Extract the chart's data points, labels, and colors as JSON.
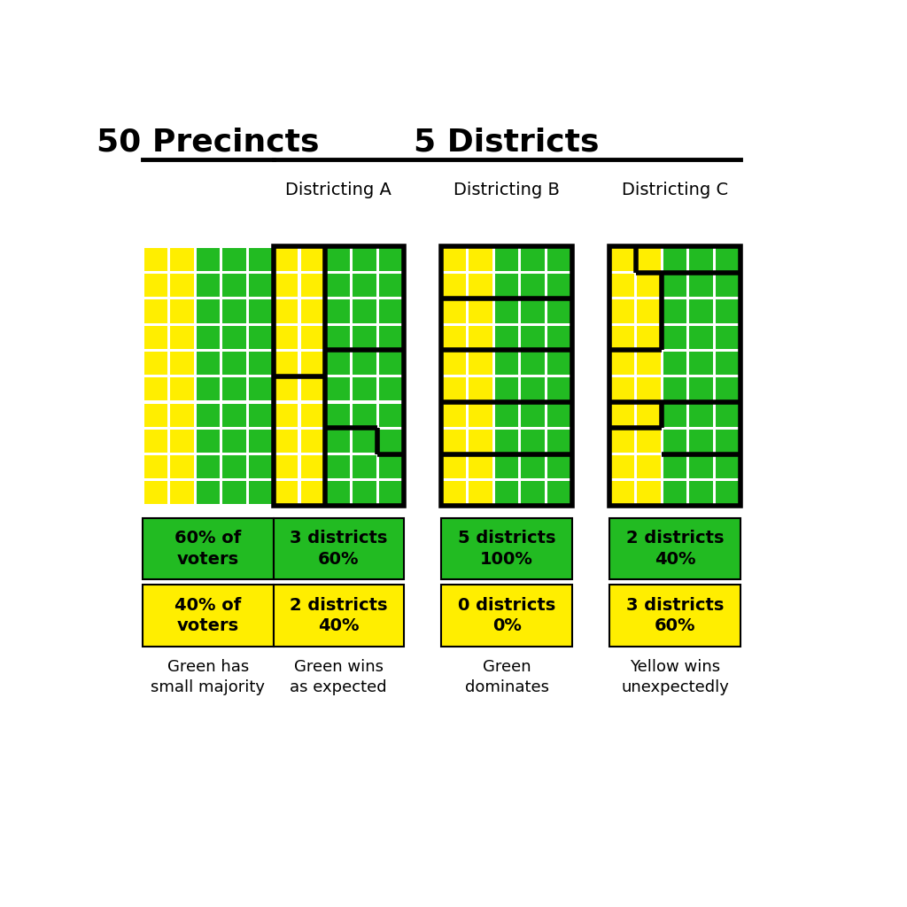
{
  "green": "#22bb22",
  "yellow": "#ffee00",
  "white": "#ffffff",
  "black": "#000000",
  "title_precincts": "50 Precincts",
  "title_districts": "5 Districts",
  "subtitle_a": "Districting A",
  "subtitle_b": "Districting B",
  "subtitle_c": "Districting C",
  "label_green_top": "60% of\nvoters",
  "label_yellow_top": "40% of\nvoters",
  "label_a_green": "3 districts\n60%",
  "label_a_yellow": "2 districts\n40%",
  "label_b_green": "5 districts\n100%",
  "label_b_yellow": "0 districts\n0%",
  "label_c_green": "2 districts\n40%",
  "label_c_yellow": "3 districts\n60%",
  "caption_precincts": "Green has\nsmall majority",
  "caption_a": "Green wins\nas expected",
  "caption_b": "Green\ndominates",
  "caption_c": "Yellow wins\nunexpectedly",
  "grid_rows": 10,
  "grid_cols": 5,
  "yellow_cols": 2
}
